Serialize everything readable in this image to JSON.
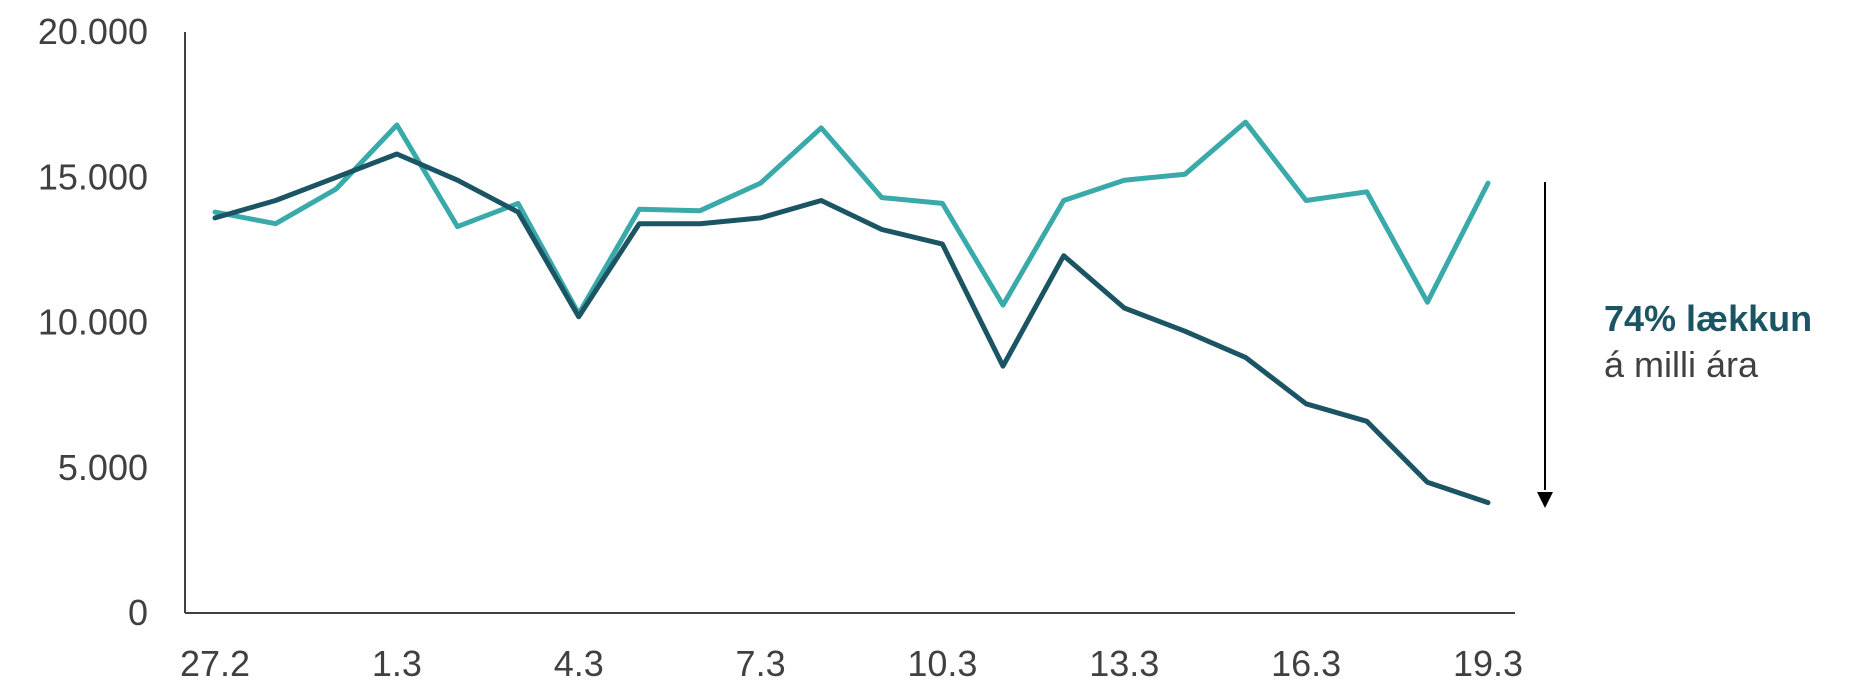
{
  "chart_data": {
    "type": "line",
    "x": [
      "27.2",
      "28.2",
      "29.2",
      "1.3",
      "2.3",
      "3.3",
      "4.3",
      "5.3",
      "6.3",
      "7.3",
      "8.3",
      "9.3",
      "10.3",
      "11.3",
      "12.3",
      "13.3",
      "14.3",
      "15.3",
      "16.3",
      "17.3",
      "18.3",
      "19.3"
    ],
    "x_tick_labels": [
      "27.2",
      "1.3",
      "4.3",
      "7.3",
      "10.3",
      "13.3",
      "16.3",
      "19.3"
    ],
    "y_ticks": [
      0,
      5000,
      10000,
      15000,
      20000
    ],
    "y_tick_labels": [
      "0",
      "5.000",
      "10.000",
      "15.000",
      "20.000"
    ],
    "ylim": [
      0,
      20000
    ],
    "series": [
      {
        "color": "#3aa9a9",
        "values": [
          13800,
          13400,
          14600,
          16800,
          13300,
          14100,
          10300,
          13900,
          13850,
          14800,
          16700,
          14300,
          14100,
          10600,
          14200,
          14900,
          15100,
          16900,
          14200,
          14500,
          10700,
          14800
        ]
      },
      {
        "color": "#1b5563",
        "values": [
          13600,
          14200,
          15000,
          15800,
          14900,
          13800,
          10200,
          13400,
          13400,
          13600,
          14200,
          13200,
          12700,
          8500,
          12300,
          10500,
          9700,
          8800,
          7200,
          6600,
          4500,
          3800
        ]
      }
    ],
    "annotation": {
      "headline": "74% lækkun",
      "subline": "á milli ára"
    },
    "grid": false,
    "legend": "none"
  }
}
